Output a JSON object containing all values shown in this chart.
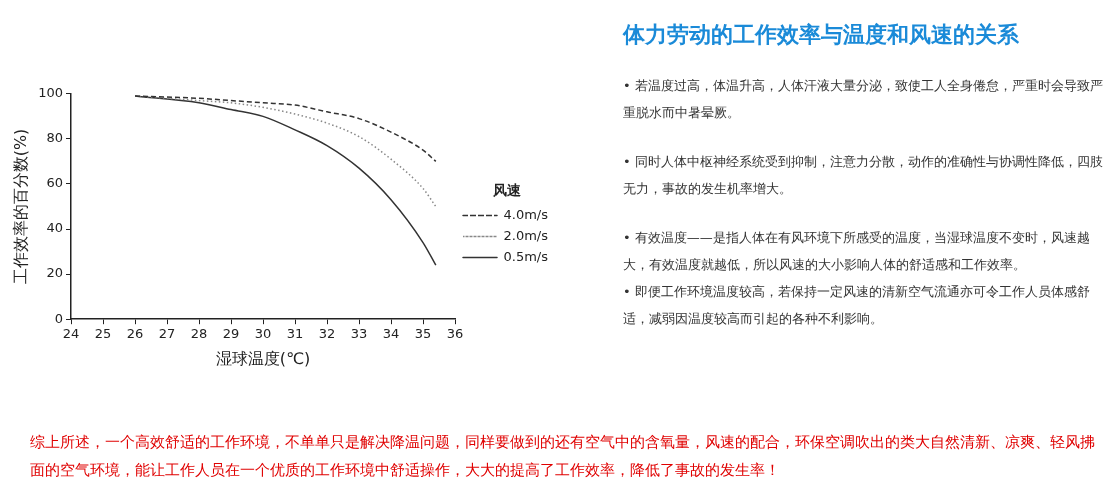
{
  "chart_data": {
    "type": "line",
    "title": "体力劳动的工作效率与温度和风速的关系",
    "xlabel": "湿球温度(℃)",
    "ylabel": "工作效率的百分数(%)",
    "xlim": [
      24,
      36
    ],
    "xticks": [
      24,
      25,
      26,
      27,
      28,
      29,
      30,
      31,
      32,
      33,
      34,
      35,
      36
    ],
    "ylim": [
      0,
      100
    ],
    "yticks": [
      0,
      20,
      40,
      60,
      80,
      100
    ],
    "grid": false,
    "legend": "right",
    "legend_title": "风速",
    "marker": "none",
    "x": [
      26,
      28,
      29,
      30,
      31,
      32,
      33,
      34,
      35,
      35.4
    ],
    "series": [
      {
        "name": "4.0m/s",
        "color": "#333333",
        "line_style": "dashed",
        "values": [
          99,
          98,
          97,
          96,
          95,
          92,
          89,
          83,
          75,
          70
        ]
      },
      {
        "name": "2.0m/s",
        "color": "#888888",
        "line_style": "dotted",
        "values": [
          99,
          97,
          96,
          94,
          91,
          87,
          81,
          71,
          58,
          50
        ]
      },
      {
        "name": "0.5m/s",
        "color": "#333333",
        "line_style": "solid",
        "values": [
          99,
          96,
          93,
          90,
          84,
          77,
          67,
          53,
          34,
          24
        ]
      }
    ],
    "annotations": [
      "• 若温度过高，体温升高，人体汗液大量分泌，致使工人全身倦怠，严重时会导致严重脱水而中暑晕厥。",
      "• 同时人体中枢神经系统受到抑制，注意力分散，动作的准确性与协调性降低，四肢无力，事故的发生机率增大。",
      "• 有效温度——是指人体在有风环境下所感受的温度，当湿球温度不变时，风速越大，有效温度就越低，所以风速的大小影响人体的舒适感和工作效率。",
      "• 即便工作环境温度较高，若保持一定风速的清新空气流通亦可令工作人员体感舒适，减弱因温度较高而引起的各种不利影响。",
      "综上所述，一个高效舒适的工作环境，不单单只是解决降温问题，同样要做到的还有空气中的含氧量，风速的配合，环保空调吹出的类大自然清新、凉爽、轻风拂面的空气环境，能让工作人员在一个优质的工作环境中舒适操作，大大的提高了工作效率，降低了事故的发生率！"
    ]
  }
}
